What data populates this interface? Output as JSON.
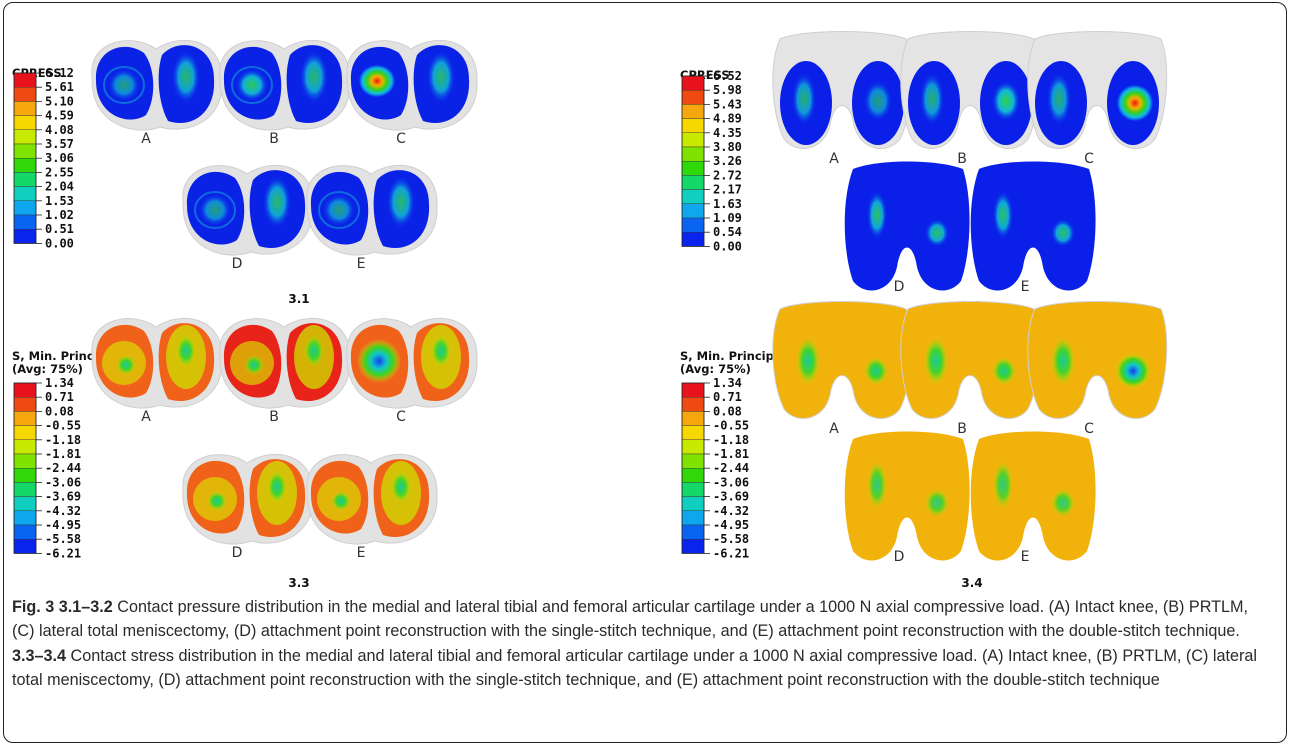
{
  "panels": [
    {
      "id": "3.1",
      "legend_title": [
        "CPRESS"
      ],
      "legend_values": [
        "6.12",
        "5.61",
        "5.10",
        "4.59",
        "4.08",
        "3.57",
        "3.06",
        "2.55",
        "2.04",
        "1.53",
        "1.02",
        "0.51",
        "0.00"
      ],
      "colormap": "pressure",
      "letters": [
        "A",
        "B",
        "C",
        "D",
        "E"
      ]
    },
    {
      "id": "3.2",
      "legend_title": [
        "CPRESS"
      ],
      "legend_values": [
        "6.52",
        "5.98",
        "5.43",
        "4.89",
        "4.35",
        "3.80",
        "3.26",
        "2.72",
        "2.17",
        "1.63",
        "1.09",
        "0.54",
        "0.00"
      ],
      "colormap": "pressure",
      "letters": [
        "A",
        "B",
        "C",
        "D",
        "E"
      ]
    },
    {
      "id": "3.3",
      "legend_title": [
        "S, Min. Principal",
        "(Avg: 75%)"
      ],
      "legend_values": [
        "1.34",
        "0.71",
        "0.08",
        "-0.55",
        "-1.18",
        "-1.81",
        "-2.44",
        "-3.06",
        "-3.69",
        "-4.32",
        "-4.95",
        "-5.58",
        "-6.21"
      ],
      "colormap": "stress",
      "letters": [
        "A",
        "B",
        "C",
        "D",
        "E"
      ]
    },
    {
      "id": "3.4",
      "legend_title": [
        "S, Min. Principal",
        "(Avg: 75%)"
      ],
      "legend_values": [
        "1.34",
        "0.71",
        "0.08",
        "-0.55",
        "-1.18",
        "-1.81",
        "-2.44",
        "-3.06",
        "-3.69",
        "-4.32",
        "-4.95",
        "-5.58",
        "-6.21"
      ],
      "colormap": "stress",
      "letters": [
        "A",
        "B",
        "C",
        "D",
        "E"
      ]
    }
  ],
  "legend_colors": [
    "#e8121c",
    "#ef4a12",
    "#f5a70d",
    "#f7d700",
    "#c8e900",
    "#7fe200",
    "#30d80a",
    "#14d86a",
    "#10cfbf",
    "#0ea6ee",
    "#0a64f2",
    "#0a24ee"
  ],
  "caption": {
    "fig_label": "Fig. 3",
    "part1_label": "3.1–3.2",
    "part1_text": " Contact pressure distribution in the medial and lateral tibial and femoral articular cartilage under a 1000 N axial compressive load. (A) Intact knee, (B) PRTLM, (C) lateral total meniscectomy, (D) attachment point reconstruction with the single-stitch technique, and (E) attachment point reconstruction with the double-stitch technique. ",
    "part2_label": "3.3–3.4",
    "part2_text": " Contact stress distribution in the medial and lateral tibial and femoral articular cartilage under a 1000 N axial compressive load. (A) Intact knee, (B) PRTLM, (C) lateral total meniscectomy, (D) attachment point reconstruction with the single-stitch technique, and (E) attachment point reconstruction with the double-stitch technique"
  }
}
